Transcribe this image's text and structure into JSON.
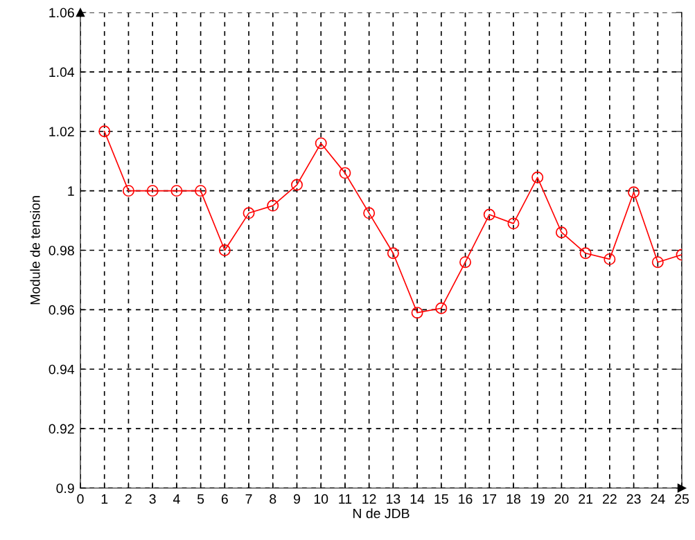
{
  "chart_data": {
    "type": "line",
    "xlabel": "N de JDB",
    "ylabel": "Module de tension",
    "x": [
      1,
      2,
      3,
      4,
      5,
      6,
      7,
      8,
      9,
      10,
      11,
      12,
      13,
      14,
      15,
      16,
      17,
      18,
      19,
      20,
      21,
      22,
      23,
      24,
      25
    ],
    "series": [
      {
        "color": "#ff0000",
        "values": [
          1.02,
          1.0,
          1.0,
          1.0,
          1.0,
          0.98,
          0.9925,
          0.995,
          1.002,
          1.016,
          1.006,
          0.9925,
          0.979,
          0.959,
          0.9605,
          0.976,
          0.992,
          0.989,
          1.0045,
          0.986,
          0.979,
          0.977,
          0.9995,
          0.976,
          0.9785
        ]
      }
    ],
    "xlim": [
      0,
      25
    ],
    "xticks": [
      0,
      1,
      2,
      3,
      4,
      5,
      6,
      7,
      8,
      9,
      10,
      11,
      12,
      13,
      14,
      15,
      16,
      17,
      18,
      19,
      20,
      21,
      22,
      23,
      24,
      25
    ],
    "ylim": [
      0.9,
      1.06
    ],
    "yticks": [
      {
        "value": 0.9,
        "label": "0.9"
      },
      0.92,
      0.94,
      0.96,
      0.98,
      {
        "value": 1.0,
        "label": "1"
      },
      1.02,
      1.04,
      1.06
    ],
    "grid": true,
    "marker": "circle",
    "line_style": "solid",
    "legend": false
  }
}
